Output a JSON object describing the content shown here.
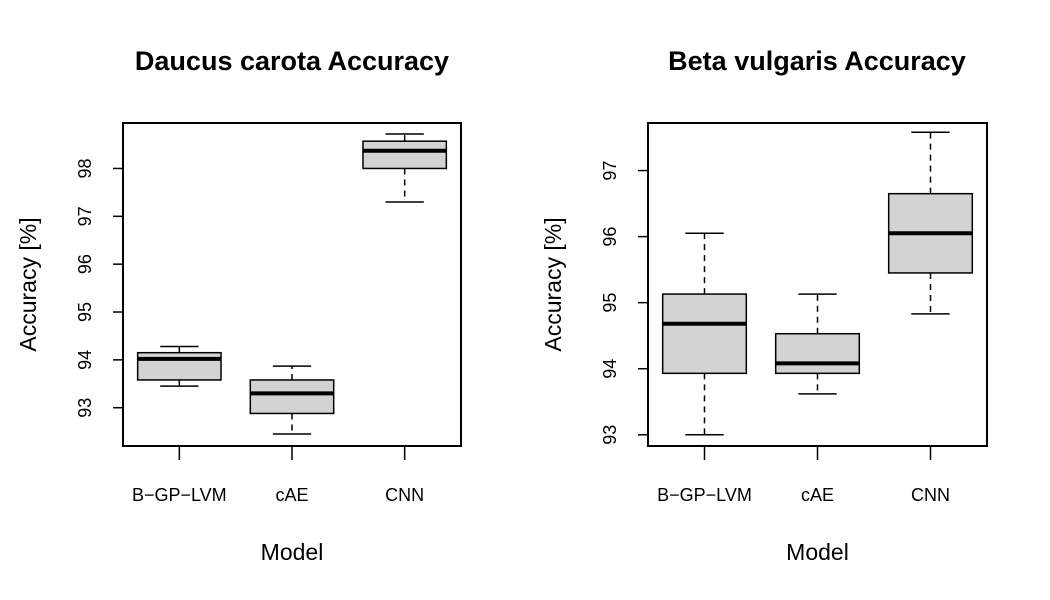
{
  "chart_data": [
    {
      "type": "box",
      "title": "Daucus carota Accuracy",
      "xlabel": "Model",
      "ylabel": "Accuracy [%]",
      "categories": [
        "B−GP−LVM",
        "cAE",
        "CNN"
      ],
      "yticks": [
        93,
        94,
        95,
        96,
        97,
        98
      ],
      "ylim": [
        92.2,
        98.95
      ],
      "boxes": [
        {
          "min": 93.45,
          "q1": 93.58,
          "median": 94.02,
          "q3": 94.15,
          "max": 94.28
        },
        {
          "min": 92.45,
          "q1": 92.88,
          "median": 93.3,
          "q3": 93.58,
          "max": 93.87
        },
        {
          "min": 97.3,
          "q1": 98.0,
          "median": 98.37,
          "q3": 98.57,
          "max": 98.72
        }
      ]
    },
    {
      "type": "box",
      "title": "Beta vulgaris Accuracy",
      "xlabel": "Model",
      "ylabel": "Accuracy [%]",
      "categories": [
        "B−GP−LVM",
        "cAE",
        "CNN"
      ],
      "yticks": [
        93,
        94,
        95,
        96,
        97
      ],
      "ylim": [
        92.83,
        97.72
      ],
      "boxes": [
        {
          "min": 93.0,
          "q1": 93.93,
          "median": 94.68,
          "q3": 95.13,
          "max": 96.05
        },
        {
          "min": 93.62,
          "q1": 93.93,
          "median": 94.08,
          "q3": 94.53,
          "max": 95.13
        },
        {
          "min": 94.83,
          "q1": 95.45,
          "median": 96.05,
          "q3": 96.65,
          "max": 97.58
        }
      ]
    }
  ]
}
